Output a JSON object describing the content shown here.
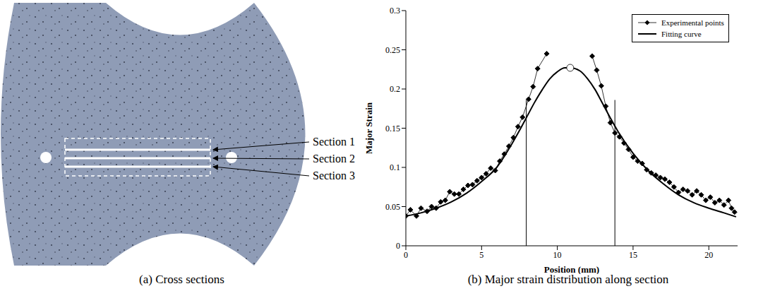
{
  "panel_a": {
    "caption": "(a) Cross sections",
    "labels": [
      "Section 1",
      "Section 2",
      "Section 3"
    ]
  },
  "chart_data": {
    "type": "line",
    "title": "(b) Major strain distribution along section",
    "x_label": "Position (mm)",
    "y_label": "Major Strain",
    "xlim": [
      0,
      21.9
    ],
    "xticks": [
      0,
      5,
      10,
      15,
      20
    ],
    "ylim": [
      0,
      0.3
    ],
    "yticks": [
      0,
      0.05,
      0.1,
      0.15,
      0.2,
      0.25,
      0.3
    ],
    "legend": "upper right",
    "series": [
      {
        "name": "Experimental points",
        "color": "#000000",
        "marker": "diamond",
        "line_style": "solid",
        "x": [
          0,
          0.3,
          0.7,
          1.0,
          1.4,
          1.7,
          2.0,
          2.3,
          2.6,
          2.9,
          3.2,
          3.5,
          3.8,
          4.1,
          4.4,
          4.7,
          5.0,
          5.3,
          5.6,
          5.9,
          6.2,
          6.5,
          6.8,
          7.1,
          7.4,
          7.7,
          8.1,
          8.4,
          8.7,
          9.3,
          10.8,
          12.3,
          12.6,
          12.9,
          13.2,
          13.5,
          13.8,
          14.1,
          14.4,
          14.7,
          15.0,
          15.3,
          15.6,
          15.9,
          16.2,
          16.5,
          16.8,
          17.1,
          17.4,
          17.7,
          18.0,
          18.3,
          18.6,
          18.9,
          19.2,
          19.5,
          19.8,
          20.1,
          20.4,
          20.7,
          21.0,
          21.3,
          21.5,
          21.7
        ],
        "values": [
          0.038,
          0.046,
          0.038,
          0.048,
          0.044,
          0.05,
          0.048,
          0.056,
          0.058,
          0.069,
          0.066,
          0.066,
          0.072,
          0.077,
          0.078,
          0.083,
          0.087,
          0.092,
          0.099,
          0.096,
          0.108,
          0.117,
          0.127,
          0.138,
          0.152,
          0.164,
          0.187,
          0.203,
          0.226,
          0.245,
          null,
          0.242,
          0.224,
          0.204,
          0.178,
          0.157,
          0.144,
          0.139,
          0.131,
          0.123,
          0.113,
          0.108,
          0.105,
          0.097,
          0.093,
          0.09,
          0.087,
          0.085,
          0.081,
          0.075,
          0.068,
          0.072,
          0.07,
          0.065,
          0.07,
          0.065,
          0.058,
          0.062,
          0.055,
          0.058,
          0.052,
          0.058,
          0.048,
          0.043
        ]
      },
      {
        "name": "Fitting curve",
        "color": "#000000",
        "marker": "none",
        "line_style": "solid",
        "x": [
          0,
          1,
          2,
          3,
          4,
          5,
          6,
          7,
          7.5,
          8,
          8.5,
          9,
          9.5,
          10,
          10.5,
          10.85,
          11.5,
          12,
          12.5,
          13,
          13.5,
          14,
          15,
          16,
          17,
          18,
          19,
          20,
          21,
          21.8
        ],
        "values": [
          0.038,
          0.042,
          0.048,
          0.056,
          0.067,
          0.082,
          0.1,
          0.13,
          0.147,
          0.165,
          0.183,
          0.199,
          0.213,
          0.222,
          0.227,
          0.227,
          0.223,
          0.213,
          0.199,
          0.181,
          0.163,
          0.146,
          0.118,
          0.096,
          0.079,
          0.065,
          0.055,
          0.048,
          0.042,
          0.037
        ]
      }
    ],
    "vertical_lines": [
      {
        "x": 7.95,
        "y": 0.186
      },
      {
        "x": 13.8,
        "y": 0.186
      }
    ],
    "peak": {
      "x": 10.85,
      "y": 0.227
    }
  }
}
